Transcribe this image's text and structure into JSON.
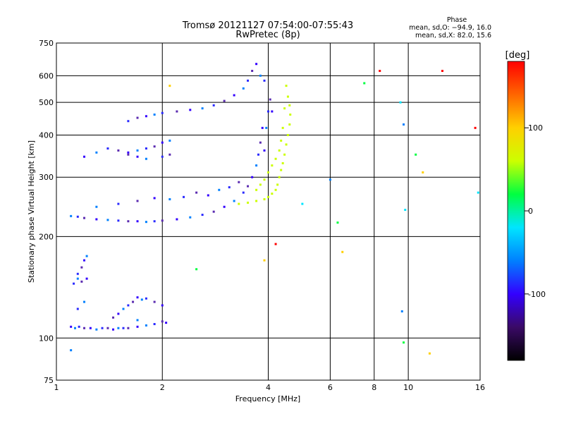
{
  "chart_data": {
    "type": "scatter",
    "title": "Tromsø 20121127 07:54:00-07:55:43",
    "subtitle": "RwPretec (8p)",
    "xlabel": "Frequency [MHz]",
    "ylabel": "Stationary phase Virtual Height [km]",
    "x_scale": "log",
    "y_scale": "log",
    "xlim": [
      1,
      16
    ],
    "ylim": [
      75,
      750
    ],
    "x_ticks": [
      1,
      2,
      4,
      6,
      8,
      10,
      16
    ],
    "y_ticks": [
      75,
      100,
      200,
      300,
      400,
      500,
      600,
      750
    ],
    "x_grid_lines": [
      2,
      4,
      6,
      8,
      10
    ],
    "y_grid_lines": [
      100,
      200,
      300,
      400,
      500,
      600
    ],
    "grid": true,
    "stats": {
      "heading": "Phase",
      "line1": "mean, sd,O: −94.9, 16.0",
      "line2": "mean, sd,X:  82.0, 15.6"
    },
    "colorbar": {
      "label": "[deg]",
      "range": [
        -180,
        180
      ],
      "ticks": [
        100,
        0,
        -100
      ],
      "colors": [
        "#000000",
        "#3a0a66",
        "#3300ff",
        "#0080ff",
        "#00e5ff",
        "#00ff40",
        "#ccff00",
        "#ffd000",
        "#ff6600",
        "#ff0000"
      ]
    },
    "series": [
      {
        "values": [
          [
            1.1,
            108
          ],
          [
            1.13,
            107
          ],
          [
            1.16,
            108
          ],
          [
            1.2,
            107
          ],
          [
            1.25,
            107
          ],
          [
            1.3,
            106
          ],
          [
            1.35,
            107
          ],
          [
            1.4,
            107
          ],
          [
            1.45,
            106
          ],
          [
            1.5,
            107
          ],
          [
            1.55,
            107
          ],
          [
            1.6,
            107
          ],
          [
            1.7,
            108
          ],
          [
            1.8,
            109
          ],
          [
            1.9,
            110
          ],
          [
            2.0,
            112
          ],
          [
            2.05,
            111
          ],
          [
            1.15,
            150
          ],
          [
            1.15,
            155
          ],
          [
            1.18,
            162
          ],
          [
            1.2,
            170
          ],
          [
            1.22,
            175
          ],
          [
            1.12,
            145
          ],
          [
            1.18,
            147
          ],
          [
            1.22,
            150
          ],
          [
            1.2,
            128
          ],
          [
            1.15,
            122
          ],
          [
            1.45,
            115
          ],
          [
            1.5,
            118
          ],
          [
            1.55,
            122
          ],
          [
            1.6,
            125
          ],
          [
            1.65,
            128
          ],
          [
            1.7,
            132
          ],
          [
            1.75,
            130
          ],
          [
            1.8,
            131
          ],
          [
            1.9,
            128
          ],
          [
            2.0,
            125
          ],
          [
            1.1,
            230
          ],
          [
            1.15,
            229
          ],
          [
            1.2,
            227
          ],
          [
            1.3,
            225
          ],
          [
            1.4,
            224
          ],
          [
            1.5,
            223
          ],
          [
            1.6,
            222
          ],
          [
            1.7,
            222
          ],
          [
            1.8,
            221
          ],
          [
            1.9,
            222
          ],
          [
            2.0,
            223
          ],
          [
            2.2,
            225
          ],
          [
            2.4,
            228
          ],
          [
            2.6,
            232
          ],
          [
            2.8,
            237
          ],
          [
            3.0,
            245
          ],
          [
            3.2,
            255
          ],
          [
            3.4,
            270
          ],
          [
            3.5,
            282
          ],
          [
            3.6,
            300
          ],
          [
            3.7,
            325
          ],
          [
            3.75,
            350
          ],
          [
            3.8,
            380
          ],
          [
            3.85,
            420
          ],
          [
            1.3,
            245
          ],
          [
            1.5,
            250
          ],
          [
            1.7,
            255
          ],
          [
            1.9,
            260
          ],
          [
            2.1,
            258
          ],
          [
            2.3,
            262
          ],
          [
            2.5,
            270
          ],
          [
            2.7,
            265
          ],
          [
            2.9,
            275
          ],
          [
            3.1,
            280
          ],
          [
            3.3,
            290
          ],
          [
            1.2,
            345
          ],
          [
            1.3,
            355
          ],
          [
            1.4,
            365
          ],
          [
            1.5,
            360
          ],
          [
            1.6,
            355
          ],
          [
            1.7,
            360
          ],
          [
            1.8,
            365
          ],
          [
            1.9,
            370
          ],
          [
            2.0,
            380
          ],
          [
            2.1,
            385
          ],
          [
            1.6,
            440
          ],
          [
            1.7,
            450
          ],
          [
            1.8,
            455
          ],
          [
            1.9,
            460
          ],
          [
            2.0,
            465
          ],
          [
            2.2,
            470
          ],
          [
            2.4,
            475
          ],
          [
            2.6,
            480
          ],
          [
            2.8,
            490
          ],
          [
            3.0,
            505
          ],
          [
            3.2,
            525
          ],
          [
            3.4,
            550
          ],
          [
            3.5,
            580
          ],
          [
            3.6,
            620
          ],
          [
            3.7,
            650
          ],
          [
            3.8,
            600
          ],
          [
            3.9,
            580
          ],
          [
            1.6,
            350
          ],
          [
            1.7,
            345
          ],
          [
            1.8,
            340
          ],
          [
            2.0,
            345
          ],
          [
            2.1,
            350
          ],
          [
            3.9,
            360
          ],
          [
            3.95,
            420
          ],
          [
            4.0,
            470
          ],
          [
            4.05,
            510
          ],
          [
            4.1,
            470
          ]
        ]
      },
      {
        "values": [
          [
            3.3,
            250
          ],
          [
            3.5,
            252
          ],
          [
            3.7,
            255
          ],
          [
            3.9,
            258
          ],
          [
            4.0,
            262
          ],
          [
            4.1,
            268
          ],
          [
            4.2,
            275
          ],
          [
            4.25,
            285
          ],
          [
            4.3,
            300
          ],
          [
            4.35,
            315
          ],
          [
            4.4,
            330
          ],
          [
            4.45,
            350
          ],
          [
            4.5,
            375
          ],
          [
            4.55,
            400
          ],
          [
            4.6,
            430
          ],
          [
            4.62,
            460
          ],
          [
            4.6,
            490
          ],
          [
            4.55,
            520
          ],
          [
            4.5,
            560
          ],
          [
            4.45,
            480
          ],
          [
            4.4,
            420
          ],
          [
            4.35,
            385
          ],
          [
            4.3,
            360
          ],
          [
            4.2,
            340
          ],
          [
            4.1,
            325
          ],
          [
            4.0,
            310
          ],
          [
            3.9,
            295
          ],
          [
            3.8,
            285
          ],
          [
            3.7,
            275
          ]
        ]
      }
    ],
    "scattered_points": [
      [
        1.7,
        113
      ],
      [
        2.5,
        160
      ],
      [
        3.9,
        170
      ],
      [
        4.2,
        190
      ],
      [
        5.0,
        250
      ],
      [
        6.0,
        295
      ],
      [
        6.3,
        220
      ],
      [
        6.5,
        180
      ],
      [
        8.3,
        620
      ],
      [
        9.5,
        500
      ],
      [
        9.7,
        430
      ],
      [
        10.5,
        350
      ],
      [
        11.0,
        310
      ],
      [
        12.5,
        620
      ],
      [
        9.8,
        240
      ],
      [
        9.6,
        120
      ],
      [
        9.7,
        97
      ],
      [
        11.5,
        90
      ],
      [
        15.5,
        420
      ],
      [
        15.8,
        270
      ],
      [
        1.1,
        92
      ],
      [
        7.5,
        570
      ],
      [
        2.1,
        560
      ]
    ]
  }
}
